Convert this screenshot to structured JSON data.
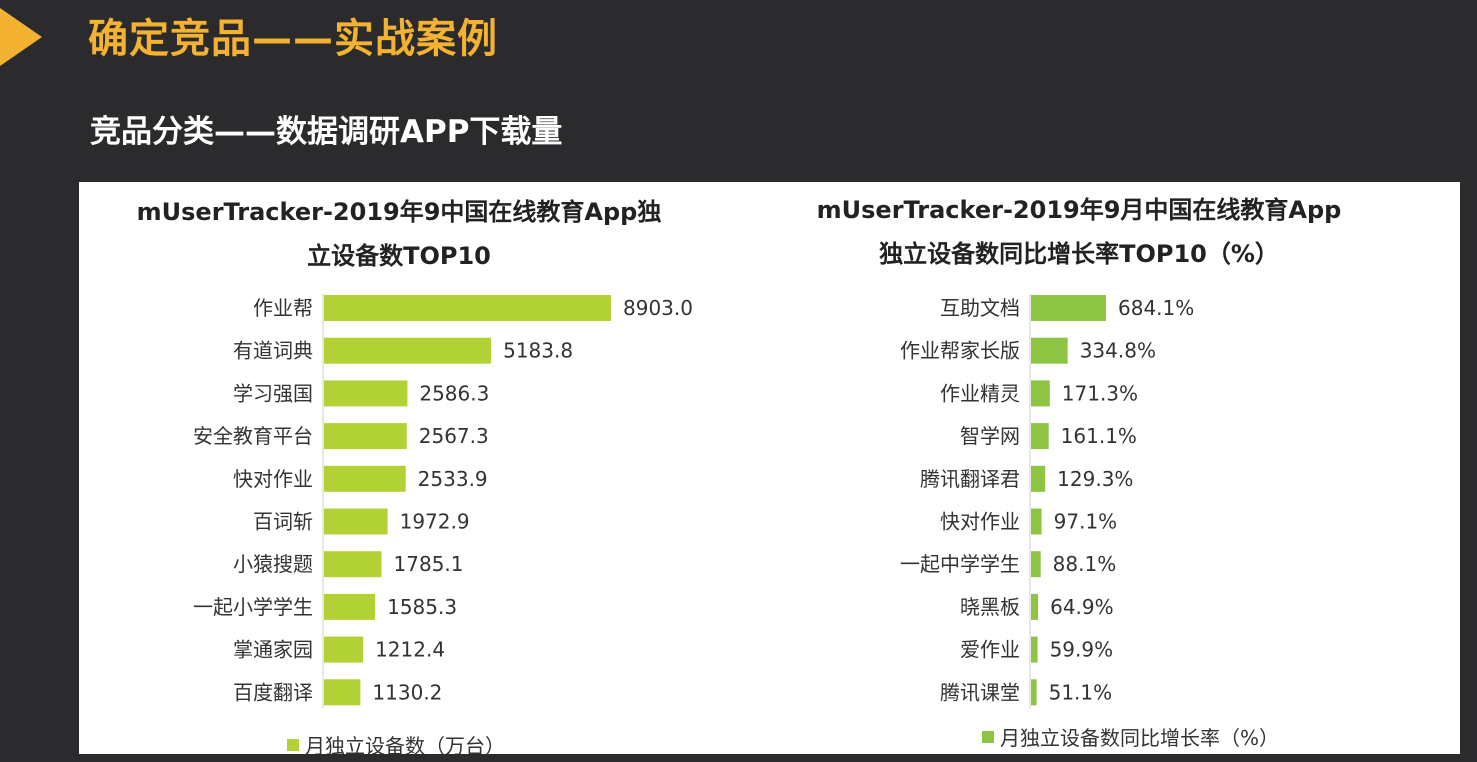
{
  "header": {
    "title": "确定竞品——实战案例",
    "subtitle": "竞品分类——数据调研APP下载量"
  },
  "colors": {
    "accent": "#f4b233",
    "bar_left": "#b2d135",
    "bar_right": "#8dc444"
  },
  "chart_data": [
    {
      "type": "bar",
      "orientation": "horizontal",
      "title": "mUserTracker-2019年9中国在线教育App独立设备数TOP10",
      "title_lines": [
        "mUserTracker-2019年9中国在线教育App独",
        "立设备数TOP10"
      ],
      "categories": [
        "作业帮",
        "有道词典",
        "学习强国",
        "安全教育平台",
        "快对作业",
        "百词斩",
        "小猿搜题",
        "一起小学学生",
        "掌通家园",
        "百度翻译"
      ],
      "values": [
        8903.0,
        5183.8,
        2586.3,
        2567.3,
        2533.9,
        1972.9,
        1785.1,
        1585.3,
        1212.4,
        1130.2
      ],
      "value_labels": [
        "8903.0",
        "5183.8",
        "2586.3",
        "2567.3",
        "2533.9",
        "1972.9",
        "1785.1",
        "1585.3",
        "1212.4",
        "1130.2"
      ],
      "legend": "月独立设备数（万台）",
      "xlim": [
        0,
        8903.0
      ]
    },
    {
      "type": "bar",
      "orientation": "horizontal",
      "title": "mUserTracker-2019年9月中国在线教育App独立设备数同比增长率TOP10（%）",
      "title_lines": [
        "mUserTracker-2019年9月中国在线教育App",
        "独立设备数同比增长率TOP10（%）"
      ],
      "categories": [
        "互助文档",
        "作业帮家长版",
        "作业精灵",
        "智学网",
        "腾讯翻译君",
        "快对作业",
        "一起中学学生",
        "晓黑板",
        "爱作业",
        "腾讯课堂"
      ],
      "values": [
        684.1,
        334.8,
        171.3,
        161.1,
        129.3,
        97.1,
        88.1,
        64.9,
        59.9,
        51.1
      ],
      "value_labels": [
        "684.1%",
        "334.8%",
        "171.3%",
        "161.1%",
        "129.3%",
        "97.1%",
        "88.1%",
        "64.9%",
        "59.9%",
        "51.1%"
      ],
      "legend": "月独立设备数同比增长率（%）",
      "xlim": [
        0,
        684.1
      ]
    }
  ]
}
